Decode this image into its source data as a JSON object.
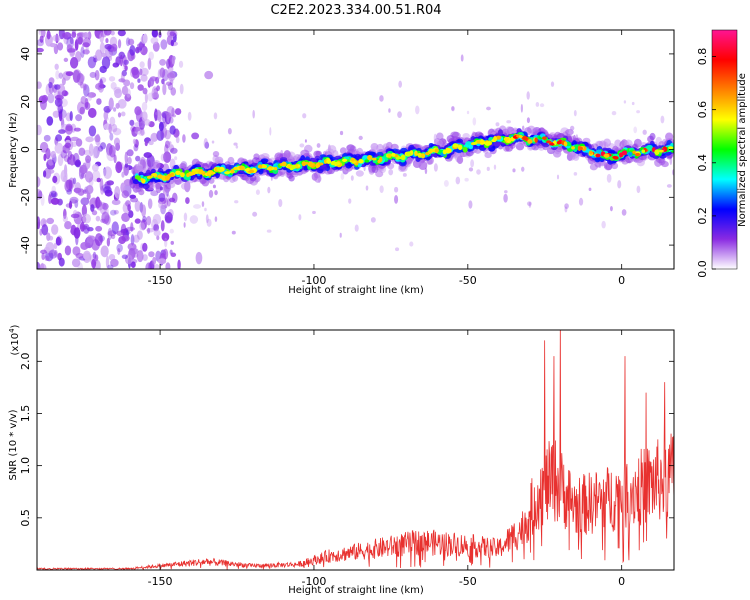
{
  "title": "C2E2.2023.334.00.51.R04",
  "chart_data": [
    {
      "type": "heatmap",
      "xlabel": "Height of straight line (km)",
      "ylabel": "Frequency (Hz)",
      "xlim": [
        -190,
        17
      ],
      "ylim": [
        -50,
        50
      ],
      "x_ticks": [
        -150,
        -100,
        -50,
        0
      ],
      "y_ticks": [
        -40,
        -20,
        0,
        20,
        40
      ],
      "ridge_centerline": [
        {
          "x": -155,
          "y": -12
        },
        {
          "x": -140,
          "y": -10
        },
        {
          "x": -120,
          "y": -8
        },
        {
          "x": -100,
          "y": -6
        },
        {
          "x": -80,
          "y": -4
        },
        {
          "x": -60,
          "y": -1
        },
        {
          "x": -45,
          "y": 3
        },
        {
          "x": -35,
          "y": 5
        },
        {
          "x": -25,
          "y": 4
        },
        {
          "x": -15,
          "y": 1
        },
        {
          "x": -5,
          "y": -3
        },
        {
          "x": 5,
          "y": -1
        },
        {
          "x": 15,
          "y": 0
        }
      ],
      "colorbar": {
        "label": "Normalized spectral amplitude",
        "range": [
          0,
          0.9
        ],
        "ticks": [
          "0.0",
          "0.2",
          "0.4",
          "0.6",
          "0.8"
        ],
        "colormap": [
          "#ffffff",
          "#8a2be2",
          "#0000ff",
          "#00ffff",
          "#00ff00",
          "#ffff00",
          "#ff8000",
          "#ff0000",
          "#ff1493"
        ]
      },
      "grid": false
    },
    {
      "type": "line",
      "xlabel": "Height of straight line (km)",
      "ylabel": "SNR (10 * v/v)",
      "y_multiplier_label": "(x10",
      "y_multiplier_exponent": "4",
      "xlim": [
        -190,
        17
      ],
      "ylim": [
        0,
        2.3
      ],
      "x_ticks": [
        -150,
        -100,
        -50,
        0
      ],
      "y_ticks": [
        "0.5",
        "1.0",
        "1.5",
        "2.0"
      ],
      "series_color": "#e8312f",
      "envelope": [
        {
          "x": -190,
          "y": 0.02
        },
        {
          "x": -160,
          "y": 0.02
        },
        {
          "x": -150,
          "y": 0.06
        },
        {
          "x": -135,
          "y": 0.12
        },
        {
          "x": -120,
          "y": 0.06
        },
        {
          "x": -105,
          "y": 0.08
        },
        {
          "x": -95,
          "y": 0.2
        },
        {
          "x": -80,
          "y": 0.3
        },
        {
          "x": -65,
          "y": 0.4
        },
        {
          "x": -50,
          "y": 0.35
        },
        {
          "x": -40,
          "y": 0.3
        },
        {
          "x": -32,
          "y": 0.6
        },
        {
          "x": -27,
          "y": 1.1
        },
        {
          "x": -22,
          "y": 1.3
        },
        {
          "x": -15,
          "y": 0.9
        },
        {
          "x": -5,
          "y": 1.0
        },
        {
          "x": 5,
          "y": 1.15
        },
        {
          "x": 17,
          "y": 1.35
        }
      ],
      "peaks": [
        {
          "x": -25,
          "y": 2.2
        },
        {
          "x": -22,
          "y": 2.05
        },
        {
          "x": -20,
          "y": 2.4
        },
        {
          "x": 1,
          "y": 2.05
        },
        {
          "x": 8,
          "y": 1.7
        },
        {
          "x": 14,
          "y": 1.8
        }
      ],
      "grid": false
    }
  ]
}
